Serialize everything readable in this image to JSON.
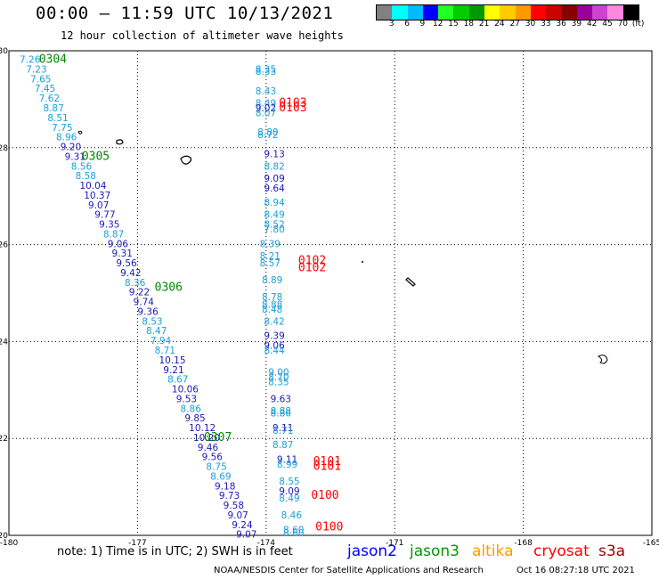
{
  "header": {
    "title": "00:00 – 11:59 UTC 10/13/2021",
    "subtitle": "12 hour collection of altimeter wave heights"
  },
  "scale": {
    "colors": [
      "#808080",
      "#00ffff",
      "#00bbff",
      "#0000ff",
      "#22ff22",
      "#00cc00",
      "#009900",
      "#ffff00",
      "#ffcc00",
      "#ff9900",
      "#ff0000",
      "#cc0000",
      "#880000",
      "#990099",
      "#cc44cc",
      "#ff88dd",
      "#000000"
    ],
    "labels": [
      "3",
      "6",
      "9",
      "12",
      "15",
      "18",
      "21",
      "24",
      "27",
      "30",
      "33",
      "36",
      "39",
      "42",
      "45",
      "70",
      "(ft)"
    ],
    "label_positions": [
      1,
      2,
      3,
      4,
      5,
      6,
      7,
      8,
      9,
      10,
      11,
      12,
      13,
      14,
      15,
      16,
      17
    ]
  },
  "axes": {
    "xticks": [
      "-180",
      "-177",
      "-174",
      "-171",
      "-168",
      "-165"
    ],
    "yticks": [
      "30",
      "28",
      "26",
      "24",
      "22",
      "20"
    ]
  },
  "passes": [
    {
      "label": "0304",
      "color": "#008800",
      "lon": -179.3,
      "lat": 29.75
    },
    {
      "label": "0305",
      "color": "#008800",
      "lon": -178.3,
      "lat": 27.75
    },
    {
      "label": "0306",
      "color": "#008800",
      "lon": -176.6,
      "lat": 25.05
    },
    {
      "label": "0307",
      "color": "#008800",
      "lon": -175.45,
      "lat": 21.95
    },
    {
      "label": "0103",
      "color": "#ff0000",
      "lon": -173.7,
      "lat": 28.85
    },
    {
      "label": "0103",
      "color": "#ff0000",
      "lon": -173.7,
      "lat": 28.75
    },
    {
      "label": "0102",
      "color": "#ff0000",
      "lon": -173.25,
      "lat": 25.6
    },
    {
      "label": "0102",
      "color": "#ff0000",
      "lon": -173.25,
      "lat": 25.45
    },
    {
      "label": "0101",
      "color": "#ff0000",
      "lon": -172.9,
      "lat": 21.45
    },
    {
      "label": "0101",
      "color": "#ff0000",
      "lon": -172.9,
      "lat": 21.35
    },
    {
      "label": "0100",
      "color": "#ff0000",
      "lon": -172.95,
      "lat": 20.75
    },
    {
      "label": "0100",
      "color": "#ff0000",
      "lon": -172.85,
      "lat": 20.1
    }
  ],
  "observations": [
    {
      "v": "7.26",
      "c": "#1a9fd8",
      "lon": -179.75,
      "lat": 29.75
    },
    {
      "v": "7.23",
      "c": "#1a9fd8",
      "lon": -179.6,
      "lat": 29.55
    },
    {
      "v": "7.65",
      "c": "#1a9fd8",
      "lon": -179.5,
      "lat": 29.35
    },
    {
      "v": "7.45",
      "c": "#1a9fd8",
      "lon": -179.4,
      "lat": 29.15
    },
    {
      "v": "7.62",
      "c": "#1a9fd8",
      "lon": -179.3,
      "lat": 28.95
    },
    {
      "v": "8.87",
      "c": "#1a9fd8",
      "lon": -179.2,
      "lat": 28.75
    },
    {
      "v": "8.51",
      "c": "#1a9fd8",
      "lon": -179.1,
      "lat": 28.55
    },
    {
      "v": "7.75",
      "c": "#1a9fd8",
      "lon": -179.0,
      "lat": 28.35
    },
    {
      "v": "8.96",
      "c": "#1a9fd8",
      "lon": -178.9,
      "lat": 28.15
    },
    {
      "v": "9.20",
      "c": "#1a1ab8",
      "lon": -178.8,
      "lat": 27.95
    },
    {
      "v": "9.31",
      "c": "#1a1ab8",
      "lon": -178.7,
      "lat": 27.75
    },
    {
      "v": "8.56",
      "c": "#1a9fd8",
      "lon": -178.55,
      "lat": 27.55
    },
    {
      "v": "8.58",
      "c": "#1a9fd8",
      "lon": -178.45,
      "lat": 27.35
    },
    {
      "v": "10.04",
      "c": "#1a1ab8",
      "lon": -178.35,
      "lat": 27.15
    },
    {
      "v": "10.37",
      "c": "#1a1ab8",
      "lon": -178.25,
      "lat": 26.95
    },
    {
      "v": "9.07",
      "c": "#1a1ab8",
      "lon": -178.15,
      "lat": 26.75
    },
    {
      "v": "9.77",
      "c": "#1a1ab8",
      "lon": -178.0,
      "lat": 26.55
    },
    {
      "v": "9.35",
      "c": "#1a1ab8",
      "lon": -177.9,
      "lat": 26.35
    },
    {
      "v": "8.87",
      "c": "#1a9fd8",
      "lon": -177.8,
      "lat": 26.15
    },
    {
      "v": "9.06",
      "c": "#1a1ab8",
      "lon": -177.7,
      "lat": 25.95
    },
    {
      "v": "9.31",
      "c": "#1a1ab8",
      "lon": -177.6,
      "lat": 25.75
    },
    {
      "v": "9.56",
      "c": "#1a1ab8",
      "lon": -177.5,
      "lat": 25.55
    },
    {
      "v": "9.42",
      "c": "#1a1ab8",
      "lon": -177.4,
      "lat": 25.35
    },
    {
      "v": "8.36",
      "c": "#1a9fd8",
      "lon": -177.3,
      "lat": 25.15
    },
    {
      "v": "9.22",
      "c": "#1a1ab8",
      "lon": -177.2,
      "lat": 24.95
    },
    {
      "v": "9.74",
      "c": "#1a1ab8",
      "lon": -177.1,
      "lat": 24.75
    },
    {
      "v": "9.36",
      "c": "#1a1ab8",
      "lon": -177.0,
      "lat": 24.55
    },
    {
      "v": "8.53",
      "c": "#1a9fd8",
      "lon": -176.9,
      "lat": 24.35
    },
    {
      "v": "8.47",
      "c": "#1a9fd8",
      "lon": -176.8,
      "lat": 24.15
    },
    {
      "v": "7.94",
      "c": "#1a9fd8",
      "lon": -176.7,
      "lat": 23.95
    },
    {
      "v": "8.71",
      "c": "#1a9fd8",
      "lon": -176.6,
      "lat": 23.75
    },
    {
      "v": "10.15",
      "c": "#1a1ab8",
      "lon": -176.5,
      "lat": 23.55
    },
    {
      "v": "9.21",
      "c": "#1a1ab8",
      "lon": -176.4,
      "lat": 23.35
    },
    {
      "v": "8.67",
      "c": "#1a9fd8",
      "lon": -176.3,
      "lat": 23.15
    },
    {
      "v": "10.06",
      "c": "#1a1ab8",
      "lon": -176.2,
      "lat": 22.95
    },
    {
      "v": "9.53",
      "c": "#1a1ab8",
      "lon": -176.1,
      "lat": 22.75
    },
    {
      "v": "8.86",
      "c": "#1a9fd8",
      "lon": -176.0,
      "lat": 22.55
    },
    {
      "v": "9.85",
      "c": "#1a1ab8",
      "lon": -175.9,
      "lat": 22.35
    },
    {
      "v": "10.12",
      "c": "#1a1ab8",
      "lon": -175.8,
      "lat": 22.15
    },
    {
      "v": "10.20",
      "c": "#1a1ab8",
      "lon": -175.7,
      "lat": 21.95
    },
    {
      "v": "9.46",
      "c": "#1a1ab8",
      "lon": -175.6,
      "lat": 21.75
    },
    {
      "v": "9.56",
      "c": "#1a1ab8",
      "lon": -175.5,
      "lat": 21.55
    },
    {
      "v": "8.75",
      "c": "#1a9fd8",
      "lon": -175.4,
      "lat": 21.35
    },
    {
      "v": "8.69",
      "c": "#1a9fd8",
      "lon": -175.3,
      "lat": 21.15
    },
    {
      "v": "9.18",
      "c": "#1a1ab8",
      "lon": -175.2,
      "lat": 20.95
    },
    {
      "v": "9.73",
      "c": "#1a1ab8",
      "lon": -175.1,
      "lat": 20.75
    },
    {
      "v": "9.58",
      "c": "#1a1ab8",
      "lon": -175.0,
      "lat": 20.55
    },
    {
      "v": "9.07",
      "c": "#1a1ab8",
      "lon": -174.9,
      "lat": 20.35
    },
    {
      "v": "9.24",
      "c": "#1a1ab8",
      "lon": -174.8,
      "lat": 20.15
    },
    {
      "v": "9.07",
      "c": "#1a1ab8",
      "lon": -174.7,
      "lat": 19.95
    },
    {
      "v": "8.35",
      "c": "#1a9fd8",
      "lon": -174.25,
      "lat": 29.55
    },
    {
      "v": "8.33",
      "c": "#1a9fd8",
      "lon": -174.25,
      "lat": 29.5
    },
    {
      "v": "8.43",
      "c": "#1a9fd8",
      "lon": -174.25,
      "lat": 29.1
    },
    {
      "v": "8.49",
      "c": "#1a9fd8",
      "lon": -174.25,
      "lat": 28.85
    },
    {
      "v": "9.02",
      "c": "#1a1ab8",
      "lon": -174.25,
      "lat": 28.75
    },
    {
      "v": "8.07",
      "c": "#1a9fd8",
      "lon": -174.25,
      "lat": 28.65
    },
    {
      "v": "8.80",
      "c": "#1a9fd8",
      "lon": -174.2,
      "lat": 28.25
    },
    {
      "v": "8.72",
      "c": "#1a9fd8",
      "lon": -174.2,
      "lat": 28.2
    },
    {
      "v": "9.13",
      "c": "#1a1ab8",
      "lon": -174.05,
      "lat": 27.8
    },
    {
      "v": "8.82",
      "c": "#1a9fd8",
      "lon": -174.05,
      "lat": 27.55
    },
    {
      "v": "9.09",
      "c": "#1a1ab8",
      "lon": -174.05,
      "lat": 27.3
    },
    {
      "v": "9.64",
      "c": "#1a1ab8",
      "lon": -174.05,
      "lat": 27.1
    },
    {
      "v": "8.94",
      "c": "#1a9fd8",
      "lon": -174.05,
      "lat": 26.8
    },
    {
      "v": "8.49",
      "c": "#1a9fd8",
      "lon": -174.05,
      "lat": 26.55
    },
    {
      "v": "8.52",
      "c": "#1a9fd8",
      "lon": -174.05,
      "lat": 26.35
    },
    {
      "v": "7.80",
      "c": "#1a9fd8",
      "lon": -174.05,
      "lat": 26.25
    },
    {
      "v": "8.39",
      "c": "#1a9fd8",
      "lon": -174.15,
      "lat": 25.95
    },
    {
      "v": "8.21",
      "c": "#1a9fd8",
      "lon": -174.15,
      "lat": 25.7
    },
    {
      "v": "8.57",
      "c": "#1a9fd8",
      "lon": -174.15,
      "lat": 25.55
    },
    {
      "v": "8.89",
      "c": "#1a9fd8",
      "lon": -174.1,
      "lat": 25.2
    },
    {
      "v": "8.78",
      "c": "#1a9fd8",
      "lon": -174.1,
      "lat": 24.85
    },
    {
      "v": "8.88",
      "c": "#1a9fd8",
      "lon": -174.1,
      "lat": 24.7
    },
    {
      "v": "8.48",
      "c": "#1a9fd8",
      "lon": -174.1,
      "lat": 24.6
    },
    {
      "v": "8.42",
      "c": "#1a9fd8",
      "lon": -174.05,
      "lat": 24.35
    },
    {
      "v": "9.39",
      "c": "#1a1ab8",
      "lon": -174.05,
      "lat": 24.05
    },
    {
      "v": "9.06",
      "c": "#1a1ab8",
      "lon": -174.05,
      "lat": 23.85
    },
    {
      "v": "8.44",
      "c": "#1a9fd8",
      "lon": -174.05,
      "lat": 23.75
    },
    {
      "v": "9.00",
      "c": "#1a9fd8",
      "lon": -173.95,
      "lat": 23.3
    },
    {
      "v": "8.70",
      "c": "#1a9fd8",
      "lon": -173.95,
      "lat": 23.2
    },
    {
      "v": "8.35",
      "c": "#1a9fd8",
      "lon": -173.95,
      "lat": 23.1
    },
    {
      "v": "9.63",
      "c": "#1a1ab8",
      "lon": -173.9,
      "lat": 22.75
    },
    {
      "v": "8.88",
      "c": "#1a9fd8",
      "lon": -173.9,
      "lat": 22.5
    },
    {
      "v": "8.86",
      "c": "#1a9fd8",
      "lon": -173.9,
      "lat": 22.45
    },
    {
      "v": "9.11",
      "c": "#1a1ab8",
      "lon": -173.85,
      "lat": 22.15
    },
    {
      "v": "8.71",
      "c": "#1a9fd8",
      "lon": -173.85,
      "lat": 22.1
    },
    {
      "v": "8.87",
      "c": "#1a9fd8",
      "lon": -173.85,
      "lat": 21.8
    },
    {
      "v": "9.11",
      "c": "#1a1ab8",
      "lon": -173.75,
      "lat": 21.5
    },
    {
      "v": "8.99",
      "c": "#1a9fd8",
      "lon": -173.75,
      "lat": 21.4
    },
    {
      "v": "8.55",
      "c": "#1a9fd8",
      "lon": -173.7,
      "lat": 21.05
    },
    {
      "v": "9.09",
      "c": "#1a1ab8",
      "lon": -173.7,
      "lat": 20.85
    },
    {
      "v": "8.49",
      "c": "#1a9fd8",
      "lon": -173.7,
      "lat": 20.7
    },
    {
      "v": "8.46",
      "c": "#1a9fd8",
      "lon": -173.65,
      "lat": 20.35
    },
    {
      "v": "8.60",
      "c": "#1a9fd8",
      "lon": -173.6,
      "lat": 20.05
    },
    {
      "v": "8.60",
      "c": "#1a9fd8",
      "lon": -173.6,
      "lat": 19.98
    }
  ],
  "footer": {
    "note": "note:  1) Time is in UTC; 2) SWH is in feet",
    "legend": [
      {
        "label": "jason2",
        "color": "#0000ff"
      },
      {
        "label": "jason3",
        "color": "#009900"
      },
      {
        "label": "altika",
        "color": "#ff9900"
      },
      {
        "label": "cryosat",
        "color": "#ff0000"
      },
      {
        "label": "s3a",
        "color": "#990000"
      }
    ],
    "credit": "NOAA/NESDIS Center for Satellite Applications and Research",
    "timestamp": "Oct 16 08:27:18 UTC 2021"
  }
}
